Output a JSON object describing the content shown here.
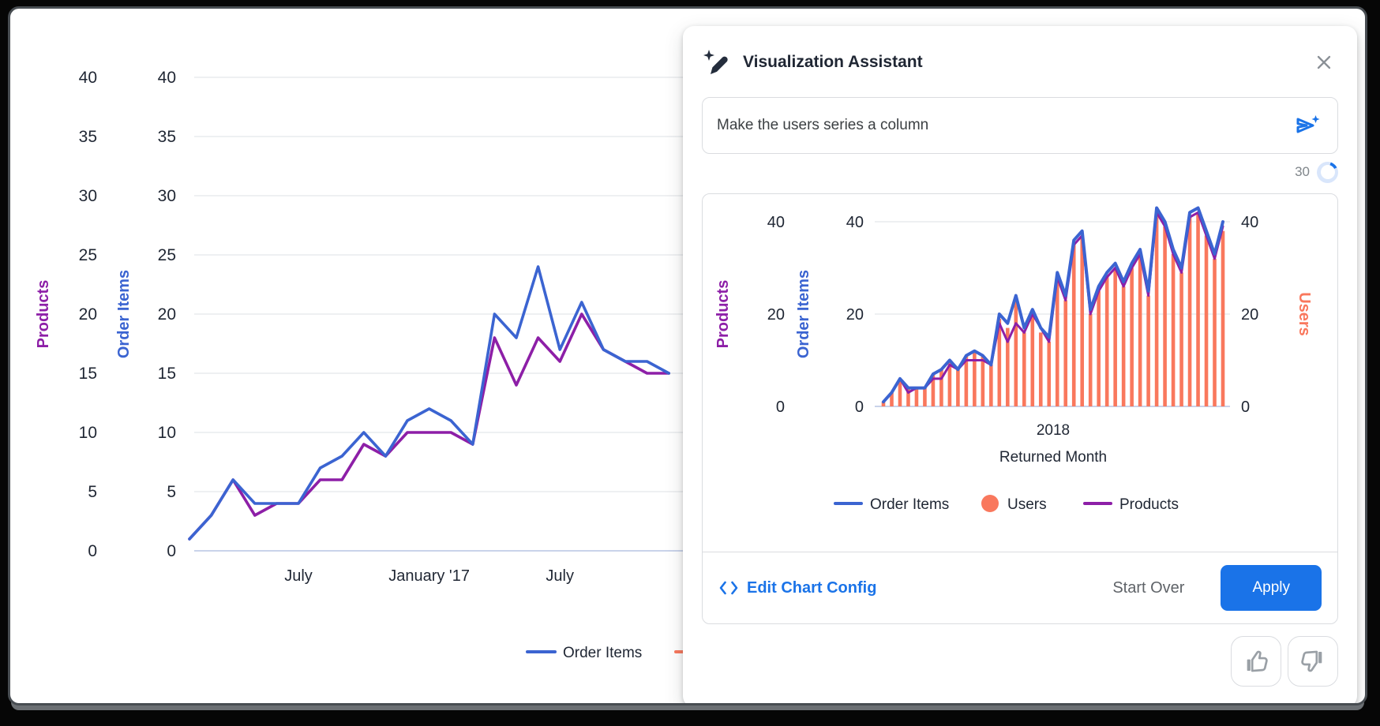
{
  "dialog": {
    "title": "Visualization Assistant",
    "input": {
      "value": "Make the users series a column"
    },
    "progress": {
      "value": "30"
    },
    "footer": {
      "edit_config": "Edit Chart Config",
      "start_over": "Start Over",
      "apply": "Apply"
    }
  },
  "colors": {
    "blue_series": "#3b64d1",
    "purple_series": "#8d1fa7",
    "orange_series": "#f9785d",
    "accent_blue": "#1a73e8",
    "grid": "#e9ebee",
    "zero_line": "#c9d3ea",
    "text_dark": "#1f2633",
    "text_gray": "#5f6368"
  },
  "chart_data": [
    {
      "id": "background",
      "type": "line",
      "title": "",
      "ylim": [
        0,
        40
      ],
      "yticks": [
        0,
        5,
        10,
        15,
        20,
        25,
        30,
        35,
        40
      ],
      "grid": true,
      "left_axes": [
        {
          "name": "Products",
          "color": "#8d1fa7"
        },
        {
          "name": "Order Items",
          "color": "#3b64d1"
        }
      ],
      "x_ticks": [
        {
          "label": "July",
          "index": 5
        },
        {
          "label": "January '17",
          "index": 11
        },
        {
          "label": "July",
          "index": 17
        }
      ],
      "series": [
        {
          "name": "Products",
          "color": "#8d1fa7",
          "values": [
            1,
            3,
            6,
            3,
            4,
            4,
            6,
            6,
            9,
            8,
            10,
            10,
            10,
            9,
            18,
            14,
            18,
            16,
            20,
            17,
            16,
            15,
            15
          ]
        },
        {
          "name": "Order Items",
          "color": "#3b64d1",
          "values": [
            1,
            3,
            6,
            4,
            4,
            4,
            7,
            8,
            10,
            8,
            11,
            12,
            11,
            9,
            20,
            18,
            24,
            17,
            21,
            17,
            16,
            16,
            15
          ]
        }
      ],
      "legend": [
        {
          "label": "Order Items",
          "color": "#3b64d1",
          "marker": "line"
        },
        {
          "label": "Users",
          "color": "#f9785d",
          "marker": "line"
        }
      ],
      "legend_position": "bottom"
    },
    {
      "id": "preview",
      "type": "combo",
      "ylim": [
        0,
        40
      ],
      "yticks": [
        0,
        20,
        40
      ],
      "grid": true,
      "left_axes": [
        {
          "name": "Products",
          "color": "#8d1fa7"
        },
        {
          "name": "Order Items",
          "color": "#3b64d1"
        }
      ],
      "right_axis": {
        "name": "Users",
        "color": "#f9785d"
      },
      "xlabel_year": "2018",
      "xlabel": "Returned Month",
      "series": [
        {
          "name": "Users",
          "type": "column",
          "color": "#f9785d",
          "values": [
            1,
            3,
            6,
            4,
            4,
            4,
            7,
            8,
            10,
            8,
            11,
            12,
            11,
            9,
            19,
            17,
            23,
            16,
            20,
            16,
            14,
            28,
            23,
            35,
            37,
            20,
            25,
            28,
            30,
            26,
            30,
            33,
            24,
            42,
            39,
            33,
            29,
            41,
            42,
            37,
            32,
            38
          ]
        },
        {
          "name": "Products",
          "type": "line",
          "color": "#8d1fa7",
          "values": [
            1,
            3,
            6,
            3,
            4,
            4,
            6,
            6,
            9,
            8,
            10,
            10,
            10,
            9,
            18,
            14,
            18,
            16,
            20,
            17,
            14,
            28,
            23,
            35,
            37,
            20,
            25,
            28,
            30,
            26,
            30,
            33,
            24,
            42,
            39,
            33,
            29,
            41,
            42,
            37,
            32,
            39
          ]
        },
        {
          "name": "Order Items",
          "type": "line",
          "color": "#3b64d1",
          "values": [
            1,
            3,
            6,
            4,
            4,
            4,
            7,
            8,
            10,
            8,
            11,
            12,
            11,
            9,
            20,
            18,
            24,
            17,
            21,
            17,
            15,
            29,
            24,
            36,
            38,
            21,
            26,
            29,
            31,
            27,
            31,
            34,
            25,
            43,
            40,
            34,
            30,
            42,
            43,
            38,
            33,
            40
          ]
        }
      ],
      "legend": [
        {
          "label": "Order Items",
          "color": "#3b64d1",
          "marker": "line"
        },
        {
          "label": "Users",
          "color": "#f9785d",
          "marker": "circle"
        },
        {
          "label": "Products",
          "color": "#8d1fa7",
          "marker": "line"
        }
      ],
      "legend_position": "bottom"
    }
  ]
}
